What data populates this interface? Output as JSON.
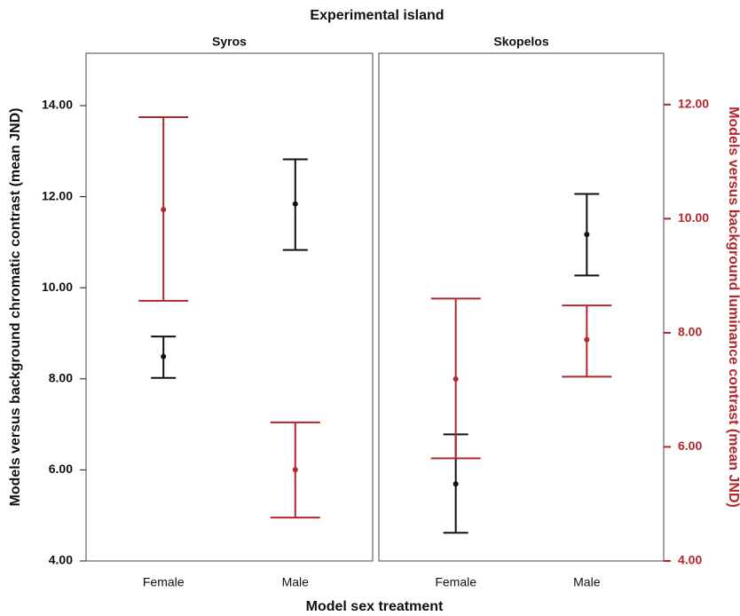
{
  "chart_data": {
    "type": "errorbar",
    "title": "Experimental island",
    "xlabel": "Model sex treatment",
    "ylabel": "Models versus background chromatic contrast (mean JND)",
    "y2label": "Models versus background luminance contrast (mean JND)",
    "categories": [
      "Female",
      "Male"
    ],
    "ylim": [
      4,
      15.15
    ],
    "yticks": [
      {
        "value": 4,
        "label": "4.00"
      },
      {
        "value": 6,
        "label": "6.00"
      },
      {
        "value": 8,
        "label": "8.00"
      },
      {
        "value": 10,
        "label": "10.00"
      },
      {
        "value": 12,
        "label": "12.00"
      },
      {
        "value": 14,
        "label": "14.00"
      }
    ],
    "y2lim": [
      4,
      12.9
    ],
    "y2ticks": [
      {
        "value": 4,
        "label": "4.00"
      },
      {
        "value": 6,
        "label": "6.00"
      },
      {
        "value": 8,
        "label": "8.00"
      },
      {
        "value": 10,
        "label": "10.00"
      },
      {
        "value": 12,
        "label": "12.00"
      }
    ],
    "y2color": "#b0272c",
    "panels": [
      {
        "title": "Syros",
        "series": [
          {
            "color": "#111111",
            "axis": "y",
            "values": [
              8.49,
              11.84
            ],
            "lower": [
              8.02,
              10.83
            ],
            "upper": [
              8.93,
              12.82
            ]
          },
          {
            "color": "#b0272c",
            "axis": "y2",
            "values": [
              10.16,
              5.6
            ],
            "lower": [
              8.56,
              4.76
            ],
            "upper": [
              11.78,
              6.43
            ]
          }
        ]
      },
      {
        "title": "Skopelos",
        "series": [
          {
            "color": "#111111",
            "axis": "y",
            "values": [
              5.69,
              11.17
            ],
            "lower": [
              4.62,
              10.27
            ],
            "upper": [
              6.78,
              12.06
            ]
          },
          {
            "color": "#b0272c",
            "axis": "y2",
            "values": [
              7.19,
              7.88
            ],
            "lower": [
              5.8,
              7.23
            ],
            "upper": [
              8.6,
              8.48
            ]
          }
        ]
      }
    ]
  }
}
